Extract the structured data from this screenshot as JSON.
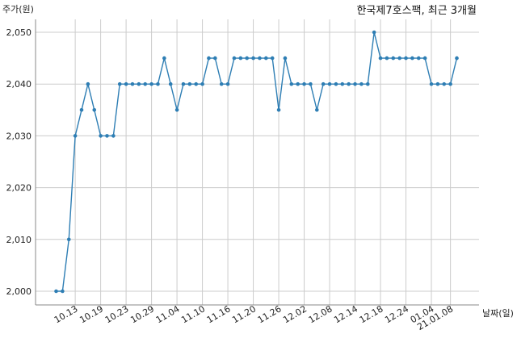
{
  "chart_data": {
    "type": "line",
    "title": "한국제7호스팩, 최근 3개월",
    "ylabel": "주가(원)",
    "xlabel": "날짜(일)",
    "ylim": [
      1998,
      2052
    ],
    "yticks": [
      2000,
      2010,
      2020,
      2030,
      2040,
      2050
    ],
    "ytick_labels": [
      "2,000",
      "2,010",
      "2,020",
      "2,030",
      "2,040",
      "2,050"
    ],
    "xtick_labels": [
      "10.13",
      "10.19",
      "10.23",
      "10.29",
      "11.04",
      "11.10",
      "11.16",
      "11.20",
      "11.26",
      "12.02",
      "12.08",
      "12.14",
      "12.18",
      "12.24",
      "01.04",
      "21.01.08"
    ],
    "xtick_indices": [
      3,
      7,
      11,
      15,
      19,
      23,
      27,
      31,
      35,
      39,
      43,
      47,
      51,
      55,
      59,
      62
    ],
    "grid": true,
    "color": "#2e7eb4",
    "series": [
      {
        "values": [
          2000,
          2000,
          2010,
          2030,
          2035,
          2040,
          2035,
          2030,
          2030,
          2030,
          2040,
          2040,
          2040,
          2040,
          2040,
          2040,
          2040,
          2045,
          2040,
          2035,
          2040,
          2040,
          2040,
          2040,
          2045,
          2045,
          2040,
          2040,
          2045,
          2045,
          2045,
          2045,
          2045,
          2045,
          2045,
          2035,
          2045,
          2040,
          2040,
          2040,
          2040,
          2035,
          2040,
          2040,
          2040,
          2040,
          2040,
          2040,
          2040,
          2040,
          2050,
          2045,
          2045,
          2045,
          2045,
          2045,
          2045,
          2045,
          2045,
          2040,
          2040,
          2040,
          2040,
          2045
        ]
      }
    ]
  }
}
